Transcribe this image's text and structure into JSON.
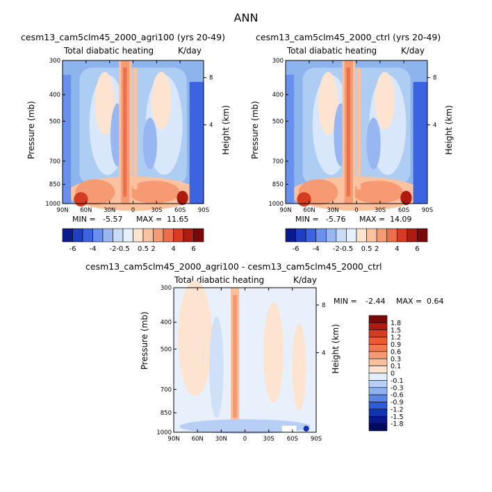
{
  "figure_title": "ANN",
  "chart_data": [
    {
      "type": "heatmap",
      "id": "agri",
      "title": "cesm13_cam5clm45_2000_agri100 (yrs 20-49)",
      "subtitle_left": "Total diabatic heating",
      "subtitle_right": "K/day",
      "xlabel": "",
      "ylabel": "Pressure (mb)",
      "ylabel_right": "Height (km)",
      "x_ticks": [
        "90N",
        "60N",
        "30N",
        "0",
        "30S",
        "60S",
        "90S"
      ],
      "y_ticks": [
        "300",
        "400",
        "500",
        "700",
        "850",
        "1000"
      ],
      "y_ticks_right": [
        "8",
        "4"
      ],
      "min_label": "MIN =",
      "min_value": "-5.57",
      "max_label": "MAX =",
      "max_value": "11.65",
      "levels": [
        "-6",
        "-4",
        "-2",
        "-0.5",
        "0.5",
        "2",
        "4",
        "6"
      ],
      "colors": [
        "#0b1a8c",
        "#1f3fc2",
        "#3d64e0",
        "#6890ec",
        "#98b7f2",
        "#c8dcf8",
        "#e6f0fc",
        "#fde4d0",
        "#fbc2a0",
        "#f59a72",
        "#ec6e4a",
        "#d63c22",
        "#b01b10",
        "#7a0808"
      ],
      "grid": false
    },
    {
      "type": "heatmap",
      "id": "ctrl",
      "title": "cesm13_cam5clm45_2000_ctrl (yrs 20-49)",
      "subtitle_left": "Total diabatic heating",
      "subtitle_right": "K/day",
      "xlabel": "",
      "ylabel": "Pressure (mb)",
      "ylabel_right": "Height (km)",
      "x_ticks": [
        "90N",
        "60N",
        "30N",
        "0",
        "30S",
        "60S",
        "90S"
      ],
      "y_ticks": [
        "300",
        "400",
        "500",
        "700",
        "850",
        "1000"
      ],
      "y_ticks_right": [
        "8",
        "4"
      ],
      "min_label": "MIN =",
      "min_value": "-5.76",
      "max_label": "MAX =",
      "max_value": "14.09",
      "levels": [
        "-6",
        "-4",
        "-2",
        "-0.5",
        "0.5",
        "2",
        "4",
        "6"
      ],
      "colors": [
        "#0b1a8c",
        "#1f3fc2",
        "#3d64e0",
        "#6890ec",
        "#98b7f2",
        "#c8dcf8",
        "#e6f0fc",
        "#fde4d0",
        "#fbc2a0",
        "#f59a72",
        "#ec6e4a",
        "#d63c22",
        "#b01b10",
        "#7a0808"
      ],
      "grid": false
    },
    {
      "type": "heatmap",
      "id": "diff",
      "title": "cesm13_cam5clm45_2000_agri100 - cesm13_cam5clm45_2000_ctrl",
      "subtitle_left": "Total diabatic heating",
      "subtitle_right": "K/day",
      "xlabel": "",
      "ylabel": "Pressure (mb)",
      "ylabel_right": "Height (km)",
      "x_ticks": [
        "90N",
        "60N",
        "30N",
        "0",
        "30S",
        "60S",
        "90S"
      ],
      "y_ticks": [
        "300",
        "400",
        "500",
        "700",
        "850",
        "1000"
      ],
      "y_ticks_right": [
        "8",
        "4"
      ],
      "min_label": "MIN =",
      "min_value": "-2.44",
      "max_label": "MAX =",
      "max_value": "0.64",
      "levels": [
        "1.8",
        "1.5",
        "1.2",
        "0.9",
        "0.6",
        "0.3",
        "0.1",
        "0",
        "-0.1",
        "-0.3",
        "-0.6",
        "-0.9",
        "-1.2",
        "-1.5",
        "-1.8"
      ],
      "colors": [
        "#7a0808",
        "#b01b10",
        "#d63c22",
        "#ec5a32",
        "#f2784e",
        "#f59a72",
        "#fbbf9c",
        "#fde4d0",
        "#e3eefb",
        "#b8cff5",
        "#8fb2ef",
        "#5b88e6",
        "#2c5cd6",
        "#1233b4",
        "#08188a",
        "#020a5c"
      ],
      "grid": false
    }
  ]
}
